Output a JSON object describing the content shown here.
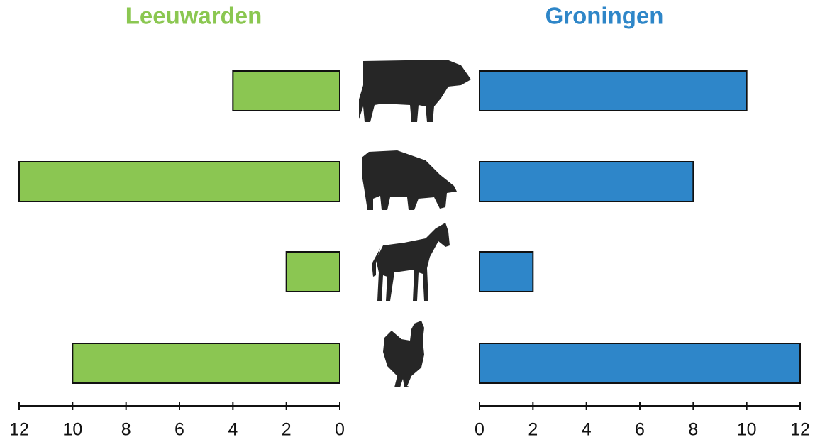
{
  "chart_data": [
    {
      "type": "bar",
      "orientation": "horizontal",
      "title": "Leeuwarden",
      "title_color": "#8bc751",
      "categories": [
        null,
        null,
        null,
        null
      ],
      "values": [
        4,
        12,
        2,
        10
      ],
      "color": "#8bc652",
      "xlim": [
        12,
        0
      ],
      "xticks": [
        12,
        10,
        8,
        6,
        4,
        2,
        0
      ]
    },
    {
      "type": "bar",
      "orientation": "horizontal",
      "title": "Groningen",
      "title_color": "#2e86c8",
      "categories": [
        null,
        null,
        null,
        null
      ],
      "values": [
        10,
        8,
        2,
        12
      ],
      "color": "#2e86c9",
      "xlim": [
        0,
        12
      ],
      "xticks": [
        0,
        2,
        4,
        6,
        8,
        10,
        12
      ]
    }
  ]
}
